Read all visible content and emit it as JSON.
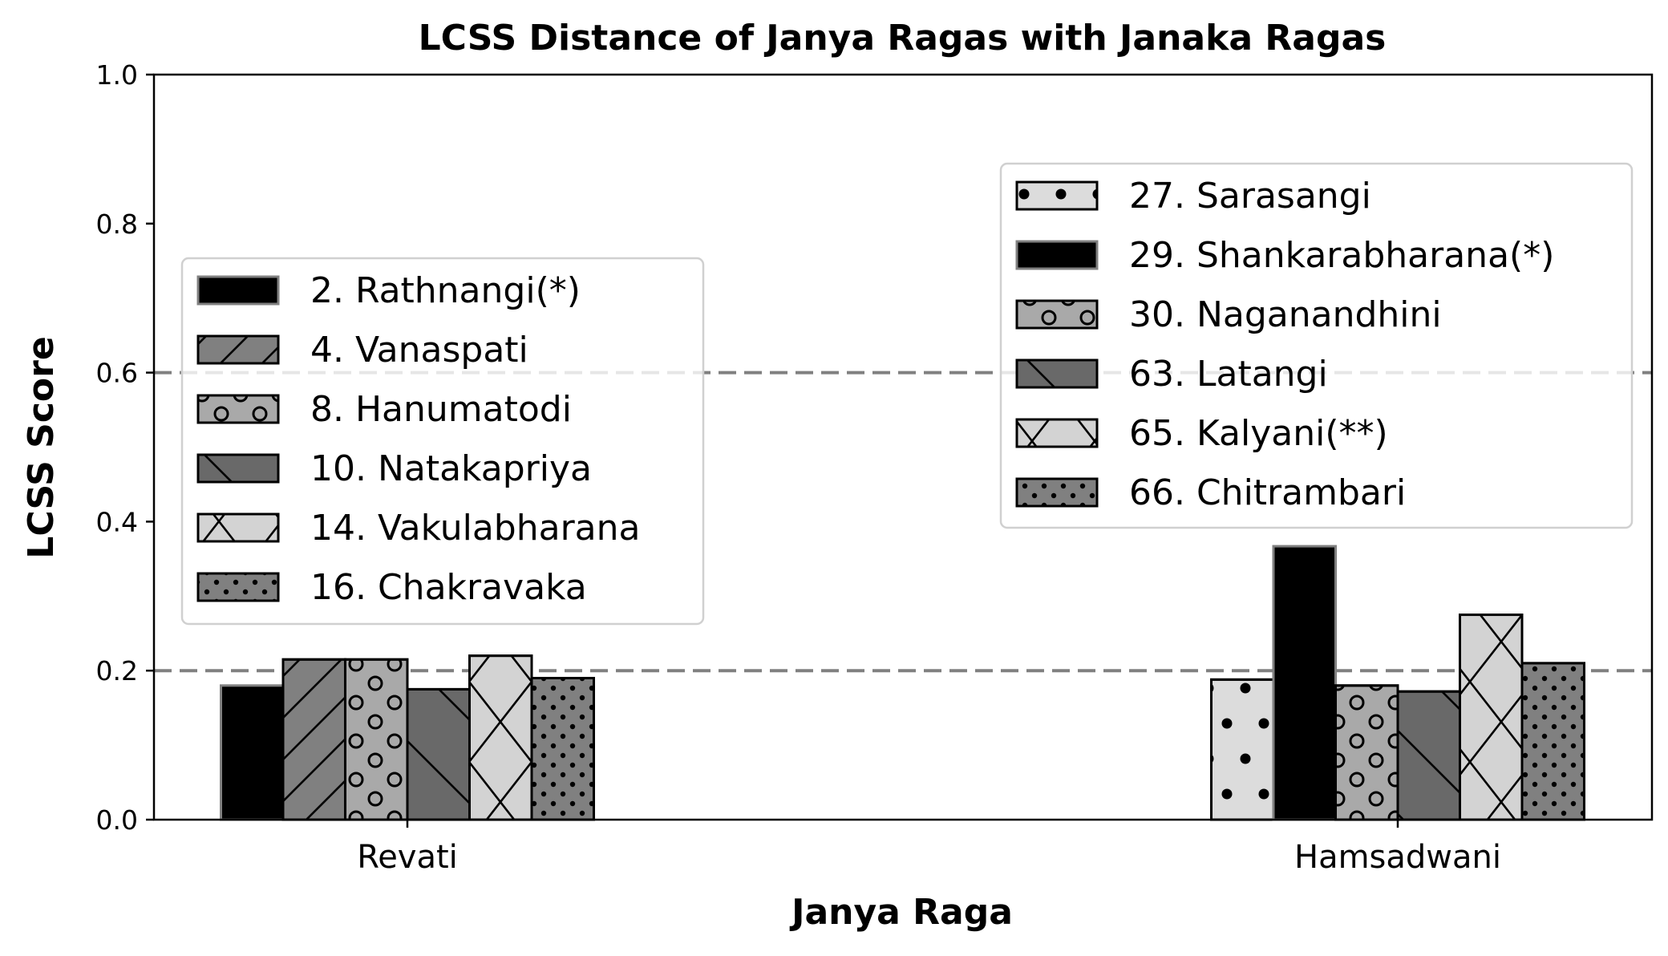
{
  "chart_data": {
    "type": "bar",
    "title": "LCSS Distance of Janya Ragas with Janaka Ragas",
    "xlabel": "Janya Raga",
    "ylabel": "LCSS Score",
    "ylim": [
      0.0,
      1.0
    ],
    "yticks": [
      "0.0",
      "0.2",
      "0.4",
      "0.6",
      "0.8",
      "1.0"
    ],
    "reference_lines": [
      0.2,
      0.6
    ],
    "grid": false,
    "groups": [
      {
        "category": "Revati",
        "legend_position": "center-left",
        "series": [
          {
            "name": "2. Rathnangi(*)",
            "value": 0.18,
            "fill": "#000000",
            "pattern": "none"
          },
          {
            "name": "4. Vanaspati",
            "value": 0.215,
            "fill": "#808080",
            "pattern": "diagonal"
          },
          {
            "name": "8. Hanumatodi",
            "value": 0.215,
            "fill": "#a9a9a9",
            "pattern": "circles"
          },
          {
            "name": "10. Natakapriya",
            "value": 0.175,
            "fill": "#696969",
            "pattern": "backslash"
          },
          {
            "name": "14. Vakulabharana",
            "value": 0.22,
            "fill": "#d3d3d3",
            "pattern": "cross"
          },
          {
            "name": "16. Chakravaka",
            "value": 0.19,
            "fill": "#808080",
            "pattern": "dots"
          }
        ]
      },
      {
        "category": "Hamsadwani",
        "legend_position": "upper-right",
        "series": [
          {
            "name": "27. Sarasangi",
            "value": 0.188,
            "fill": "#dcdcdc",
            "pattern": "bigdots"
          },
          {
            "name": "29. Shankarabharana(*)",
            "value": 0.367,
            "fill": "#000000",
            "pattern": "none"
          },
          {
            "name": "30. Naganandhini",
            "value": 0.18,
            "fill": "#a9a9a9",
            "pattern": "circles"
          },
          {
            "name": "63. Latangi",
            "value": 0.172,
            "fill": "#696969",
            "pattern": "backslash"
          },
          {
            "name": "65. Kalyani(**)",
            "value": 0.275,
            "fill": "#d3d3d3",
            "pattern": "cross"
          },
          {
            "name": "66. Chitrambari",
            "value": 0.21,
            "fill": "#808080",
            "pattern": "dots"
          }
        ]
      }
    ]
  }
}
